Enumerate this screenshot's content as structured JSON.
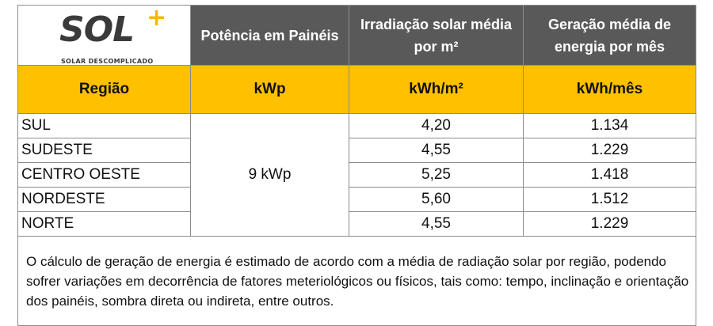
{
  "logo": {
    "word": "SOL",
    "plus": "+",
    "tagline": "SOLAR DESCOMPLICADO"
  },
  "header": {
    "col2": "Potência em Painéis",
    "col3": "Irradiação solar média por m²",
    "col4": "Geração média de energia por mês"
  },
  "units": {
    "col1": "Região",
    "col2": "kWp",
    "col3": "kWh/m²",
    "col4": "kWh/mês"
  },
  "power": "9 kWp",
  "rows": [
    {
      "region": "SUL",
      "irradiation": "4,20",
      "generation": "1.134"
    },
    {
      "region": "SUDESTE",
      "irradiation": "4,55",
      "generation": "1.229"
    },
    {
      "region": "CENTRO OESTE",
      "irradiation": "5,25",
      "generation": "1.418"
    },
    {
      "region": "NORDESTE",
      "irradiation": "5,60",
      "generation": "1.512"
    },
    {
      "region": "NORTE",
      "irradiation": "4,55",
      "generation": "1.229"
    }
  ],
  "note": "O cálculo de geração de energia é estimado de acordo com a média de radiação solar por região, podendo sofrer variações em decorrência de fatores meteriológicos ou físicos, tais como: tempo, inclinação e orientação dos painéis, sombra direta ou indireta, entre outros.",
  "colors": {
    "header_bg": "#595959",
    "unit_bg": "#ffc000",
    "logo_accent": "#f5b800"
  }
}
